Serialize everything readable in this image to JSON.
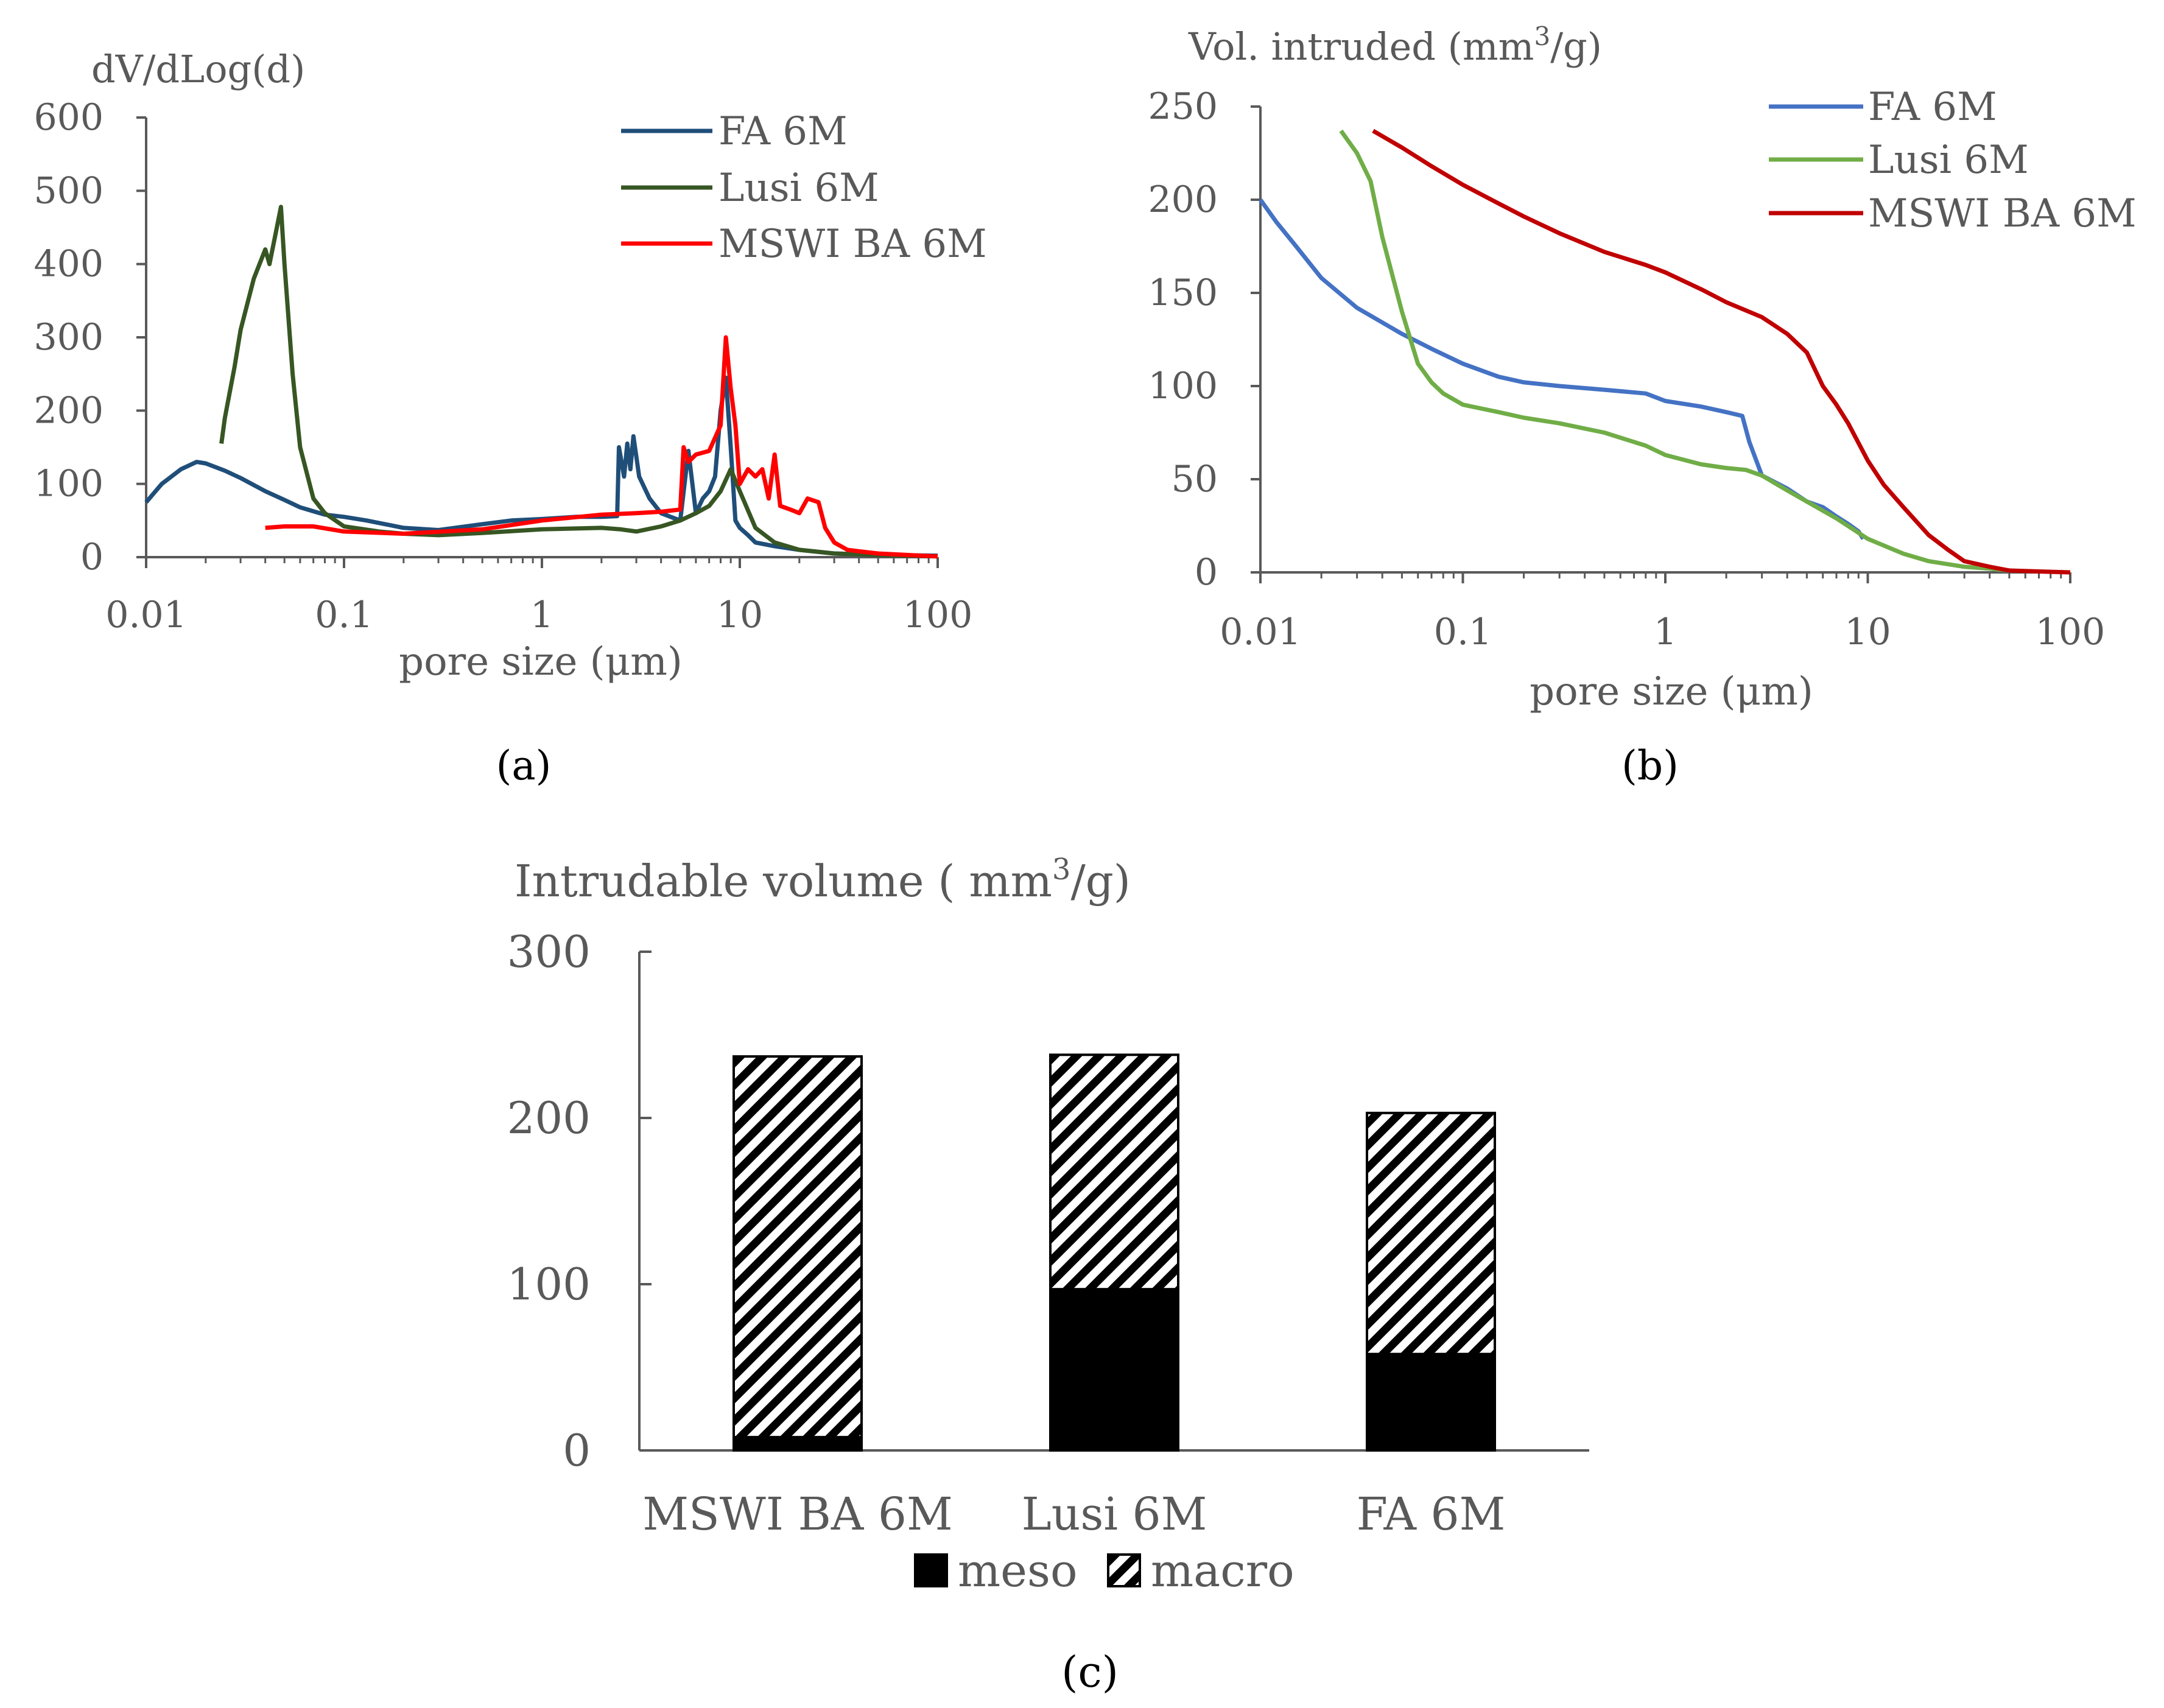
{
  "chart_data": [
    {
      "type": "line",
      "panel": "a",
      "caption_letter": "a",
      "title": "dV/dLog(d)",
      "xlabel": "pore size (μm)",
      "ylabel": "dV/dLog(d)",
      "xscale": "log",
      "xlim": [
        0.01,
        100
      ],
      "ylim": [
        0,
        600
      ],
      "x_ticks": [
        0.01,
        0.1,
        1,
        10,
        100
      ],
      "x_tick_labels": [
        "0.01",
        "0.1",
        "1",
        "10",
        "100"
      ],
      "y_ticks": [
        0,
        100,
        200,
        300,
        400,
        500,
        600
      ],
      "y_tick_labels": [
        "0",
        "100",
        "200",
        "300",
        "400",
        "500",
        "600"
      ],
      "legend_position": "top-right",
      "series": [
        {
          "name": "FA 6M",
          "color": "#1f4e79",
          "x": [
            0.01,
            0.012,
            0.015,
            0.018,
            0.02,
            0.025,
            0.03,
            0.04,
            0.05,
            0.06,
            0.08,
            0.1,
            0.13,
            0.2,
            0.3,
            0.5,
            0.7,
            1,
            1.5,
            2,
            2.4,
            2.45,
            2.6,
            2.7,
            2.8,
            2.9,
            3.1,
            3.5,
            4,
            5,
            5.5,
            6,
            6.5,
            7,
            7.5,
            8,
            8.5,
            9,
            9.5,
            10,
            11,
            12,
            15,
            20,
            30,
            50,
            100
          ],
          "y": [
            75,
            100,
            120,
            130,
            128,
            118,
            108,
            90,
            78,
            68,
            58,
            55,
            50,
            40,
            37,
            45,
            50,
            52,
            55,
            55,
            56,
            150,
            110,
            155,
            120,
            165,
            110,
            80,
            60,
            50,
            145,
            60,
            80,
            90,
            110,
            200,
            245,
            150,
            50,
            40,
            30,
            20,
            15,
            10,
            5,
            3,
            2
          ]
        },
        {
          "name": "Lusi 6M",
          "color": "#375623",
          "x": [
            0.024,
            0.025,
            0.028,
            0.03,
            0.035,
            0.04,
            0.042,
            0.045,
            0.048,
            0.05,
            0.055,
            0.06,
            0.07,
            0.08,
            0.1,
            0.15,
            0.2,
            0.3,
            0.5,
            1,
            2,
            2.5,
            3,
            4,
            5,
            6,
            7,
            8,
            9,
            10,
            12,
            15,
            20,
            30,
            50,
            100
          ],
          "y": [
            155,
            190,
            260,
            310,
            380,
            420,
            400,
            440,
            478,
            400,
            250,
            150,
            80,
            60,
            42,
            35,
            32,
            30,
            33,
            38,
            40,
            38,
            35,
            42,
            50,
            60,
            70,
            90,
            120,
            90,
            40,
            20,
            10,
            5,
            3,
            1
          ]
        },
        {
          "name": "MSWI BA 6M",
          "color": "#ff0000",
          "x": [
            0.04,
            0.05,
            0.07,
            0.1,
            0.2,
            0.5,
            1,
            2,
            3,
            4,
            5,
            5.2,
            5.5,
            6,
            7,
            8,
            8.5,
            9,
            9.5,
            10,
            11,
            12,
            13,
            14,
            15,
            16,
            18,
            20,
            22,
            25,
            27,
            30,
            35,
            40,
            50,
            70,
            100
          ],
          "y": [
            40,
            42,
            42,
            35,
            32,
            38,
            50,
            58,
            60,
            62,
            65,
            150,
            130,
            140,
            145,
            180,
            300,
            230,
            180,
            100,
            120,
            110,
            120,
            80,
            140,
            70,
            65,
            60,
            80,
            75,
            40,
            20,
            10,
            8,
            5,
            3,
            1
          ]
        }
      ]
    },
    {
      "type": "line",
      "panel": "b",
      "caption_letter": "b",
      "title": "Vol. intruded (mm3/g)",
      "title_main": "Vol. intruded (mm",
      "title_sup": "3",
      "title_tail": "/g)",
      "xlabel": "pore size (μm)",
      "ylabel": "Vol. intruded (mm3/g)",
      "xscale": "log",
      "xlim": [
        0.01,
        100
      ],
      "ylim": [
        0,
        250
      ],
      "x_ticks": [
        0.01,
        0.1,
        1,
        10,
        100
      ],
      "x_tick_labels": [
        "0.01",
        "0.1",
        "1",
        "10",
        "100"
      ],
      "y_ticks": [
        0,
        50,
        100,
        150,
        200,
        250
      ],
      "y_tick_labels": [
        "0",
        "50",
        "100",
        "150",
        "200",
        "250"
      ],
      "legend_position": "top-right",
      "series": [
        {
          "name": "FA 6M",
          "color": "#4472c4",
          "x": [
            0.01,
            0.012,
            0.015,
            0.02,
            0.03,
            0.05,
            0.07,
            0.1,
            0.15,
            0.2,
            0.3,
            0.5,
            0.8,
            1,
            1.5,
            2,
            2.4,
            2.6,
            3,
            4,
            5,
            6,
            7,
            8,
            9,
            9.5
          ],
          "y": [
            200,
            188,
            175,
            158,
            142,
            128,
            120,
            112,
            105,
            102,
            100,
            98,
            96,
            92,
            89,
            86,
            84,
            70,
            52,
            45,
            38,
            35,
            30,
            26,
            22,
            18
          ]
        },
        {
          "name": "Lusi 6M",
          "color": "#70ad47",
          "x": [
            0.025,
            0.03,
            0.035,
            0.04,
            0.05,
            0.06,
            0.07,
            0.08,
            0.1,
            0.15,
            0.2,
            0.3,
            0.5,
            0.8,
            1,
            1.5,
            2,
            2.5,
            3,
            4,
            5,
            7,
            10,
            15,
            20,
            30,
            40,
            50
          ],
          "y": [
            237,
            225,
            210,
            180,
            140,
            112,
            102,
            96,
            90,
            86,
            83,
            80,
            75,
            68,
            63,
            58,
            56,
            55,
            52,
            44,
            38,
            29,
            18,
            10,
            6,
            3,
            2,
            1
          ]
        },
        {
          "name": "MSWI BA 6M",
          "color": "#c00000",
          "x": [
            0.036,
            0.05,
            0.07,
            0.1,
            0.15,
            0.2,
            0.3,
            0.5,
            0.8,
            1,
            1.5,
            2,
            3,
            4,
            5,
            6,
            7,
            8,
            10,
            12,
            15,
            20,
            25,
            30,
            40,
            50,
            70,
            100
          ],
          "y": [
            237,
            228,
            218,
            208,
            198,
            191,
            182,
            172,
            165,
            161,
            152,
            145,
            137,
            128,
            118,
            100,
            90,
            80,
            60,
            47,
            35,
            20,
            12,
            6,
            3,
            1,
            0.5,
            0
          ]
        }
      ]
    },
    {
      "type": "bar",
      "stacked": true,
      "panel": "c",
      "caption_letter": "c",
      "title": "Intrudable volume ( mm3/g)",
      "title_main": "Intrudable volume ( mm",
      "title_sup": "3",
      "title_tail": "/g)",
      "categories": [
        "MSWI BA 6M",
        "Lusi 6M",
        "FA 6M"
      ],
      "ylim": [
        0,
        300
      ],
      "y_ticks": [
        0,
        100,
        200,
        300
      ],
      "y_tick_labels": [
        "0",
        "100",
        "200",
        "300"
      ],
      "legend_position": "bottom",
      "series": [
        {
          "name": "meso",
          "fill": "solid",
          "color": "#000000",
          "values": [
            8,
            97,
            58
          ]
        },
        {
          "name": "macro",
          "fill": "diagonal-hatch",
          "color": "#000000",
          "values": [
            229,
            141,
            145
          ]
        }
      ]
    }
  ]
}
